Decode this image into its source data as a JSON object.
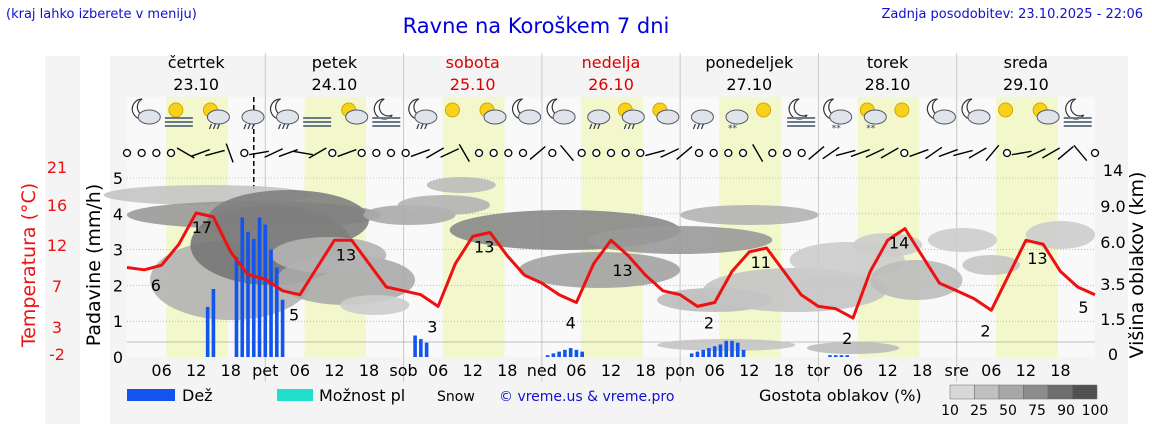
{
  "header": {
    "left_note": "(kraj lahko izberete v meniju)",
    "title": "Ravne na Koroškem 7 dni",
    "last_update": "Zadnja posodobitev: 23.10.2025 - 22:06"
  },
  "days": [
    {
      "name": "četrtek",
      "date": "23.10",
      "color": "#000000",
      "short": "pet"
    },
    {
      "name": "petek",
      "date": "24.10",
      "color": "#000000",
      "short": "sob"
    },
    {
      "name": "sobota",
      "date": "25.10",
      "color": "#dd0000",
      "short": "ned"
    },
    {
      "name": "nedelja",
      "date": "26.10",
      "color": "#dd0000",
      "short": "pon"
    },
    {
      "name": "ponedeljek",
      "date": "27.10",
      "color": "#000000",
      "short": "tor"
    },
    {
      "name": "torek",
      "date": "28.10",
      "color": "#000000",
      "short": "sre"
    },
    {
      "name": "sreda",
      "date": "29.10",
      "color": "#000000",
      "short": ""
    }
  ],
  "hour_ticks": [
    "06",
    "12",
    "18"
  ],
  "colors": {
    "temperature_line": "#ee1111",
    "rain_bar": "#1155ee",
    "daylight_band": "#f2f8cc",
    "axis_text": "#000000",
    "left_axis_label": "#ee1111",
    "credit": "#1010d0"
  },
  "weather_icons": [
    "moon-cloud-icon",
    "sun-fog-icon",
    "sun-rain-icon",
    "cloud-rain-icon",
    "moon-rain-icon",
    "fog-icon",
    "sun-cloud-icon",
    "moon-fog-icon",
    "moon-rain-icon",
    "sun-icon",
    "sun-cloud-icon",
    "moon-cloud-icon",
    "moon-cloud-icon",
    "cloud-rain-icon",
    "sun-rain-icon",
    "sun-cloud-icon",
    "cloud-rain-icon",
    "cloud-snow-icon",
    "sun-icon",
    "moon-fog-icon",
    "moon-snow-icon",
    "sun-snow-icon",
    "sun-icon",
    "moon-cloud-icon",
    "moon-cloud-icon",
    "sun-icon",
    "sun-cloud-icon",
    "moon-fog-icon"
  ],
  "chart_data": {
    "type": "line",
    "x_unit": "hours from 23.10 00:00",
    "x_range": [
      0,
      168
    ],
    "y_left_outer": {
      "label": "Temperatura (°C)",
      "ticks": [
        -2,
        3,
        7,
        12,
        16,
        21
      ],
      "ylim": [
        -2,
        21
      ]
    },
    "y_left_inner": {
      "label": "Padavine (mm/h)",
      "ticks": [
        0,
        1,
        2,
        3,
        4,
        5
      ],
      "ylim": [
        0,
        5
      ]
    },
    "y_right": {
      "label": "Višina oblakov (km)",
      "ticks": [
        0,
        1.5,
        3.5,
        6.0,
        9.0,
        14
      ],
      "ylim": [
        0,
        14
      ]
    },
    "now_marker_hour": 22,
    "series": [
      {
        "name": "temperature",
        "unit": "°C",
        "x": [
          0,
          3,
          6,
          9,
          12,
          15,
          18,
          21,
          24,
          27,
          30,
          33,
          36,
          39,
          42,
          45,
          48,
          51,
          54,
          57,
          60,
          63,
          66,
          69,
          72,
          75,
          78,
          81,
          84,
          87,
          90,
          93,
          96,
          99,
          102,
          105,
          108,
          111,
          114,
          117,
          120,
          123,
          126,
          129,
          132,
          135,
          138,
          141,
          144,
          147,
          150,
          153,
          156,
          159,
          162,
          165,
          168
        ],
        "values": [
          9.5,
          9.2,
          9.8,
          12.5,
          16.5,
          16.0,
          11.5,
          8.6,
          8.0,
          6.5,
          6.0,
          9.5,
          13.0,
          13.0,
          10.0,
          7.0,
          6.5,
          6.0,
          4.5,
          10.0,
          13.5,
          14.0,
          11.0,
          8.5,
          7.5,
          6.0,
          5.0,
          10.0,
          13.0,
          11.0,
          8.5,
          6.5,
          6.0,
          4.5,
          5.0,
          9.0,
          11.5,
          12.0,
          9.0,
          6.0,
          4.5,
          4.2,
          3.0,
          9.0,
          13.0,
          14.5,
          11.0,
          7.5,
          6.5,
          5.5,
          4.0,
          8.5,
          13.0,
          12.5,
          9.0,
          7.0,
          6.0
        ]
      },
      {
        "name": "precipitation",
        "unit": "mm/h",
        "x": [
          14,
          15,
          19,
          20,
          21,
          22,
          23,
          24,
          25,
          26,
          27,
          50,
          51,
          52,
          73,
          74,
          75,
          76,
          77,
          78,
          79,
          98,
          99,
          100,
          101,
          102,
          103,
          104,
          105,
          106,
          107,
          122,
          123,
          124,
          125
        ],
        "values": [
          1.4,
          1.9,
          2.8,
          3.9,
          3.5,
          3.3,
          3.9,
          3.7,
          3.0,
          2.5,
          1.6,
          0.6,
          0.5,
          0.4,
          0.05,
          0.1,
          0.15,
          0.2,
          0.25,
          0.2,
          0.15,
          0.1,
          0.15,
          0.2,
          0.25,
          0.3,
          0.35,
          0.45,
          0.45,
          0.4,
          0.2,
          0.05,
          0.05,
          0.05,
          0.05
        ]
      }
    ],
    "data_labels": [
      {
        "hour": 5,
        "text": "6"
      },
      {
        "hour": 13,
        "text": "17"
      },
      {
        "hour": 29,
        "text": "5"
      },
      {
        "hour": 38,
        "text": "13"
      },
      {
        "hour": 53,
        "text": "3"
      },
      {
        "hour": 62,
        "text": "13"
      },
      {
        "hour": 77,
        "text": "4"
      },
      {
        "hour": 86,
        "text": "13"
      },
      {
        "hour": 101,
        "text": "2"
      },
      {
        "hour": 110,
        "text": "11"
      },
      {
        "hour": 125,
        "text": "2"
      },
      {
        "hour": 134,
        "text": "14"
      },
      {
        "hour": 149,
        "text": "2"
      },
      {
        "hour": 158,
        "text": "13"
      },
      {
        "hour": 166,
        "text": "5"
      }
    ],
    "legend": {
      "placement": "bottom",
      "rain": "Dež",
      "possible": "Možnost pl",
      "snow": "Snow",
      "credit": "© vreme.us & vreme.pro",
      "cloud_density_label": "Gostota oblakov (%)",
      "cloud_density_ticks": [
        "10",
        "25",
        "50",
        "75",
        "90",
        "100"
      ]
    }
  }
}
